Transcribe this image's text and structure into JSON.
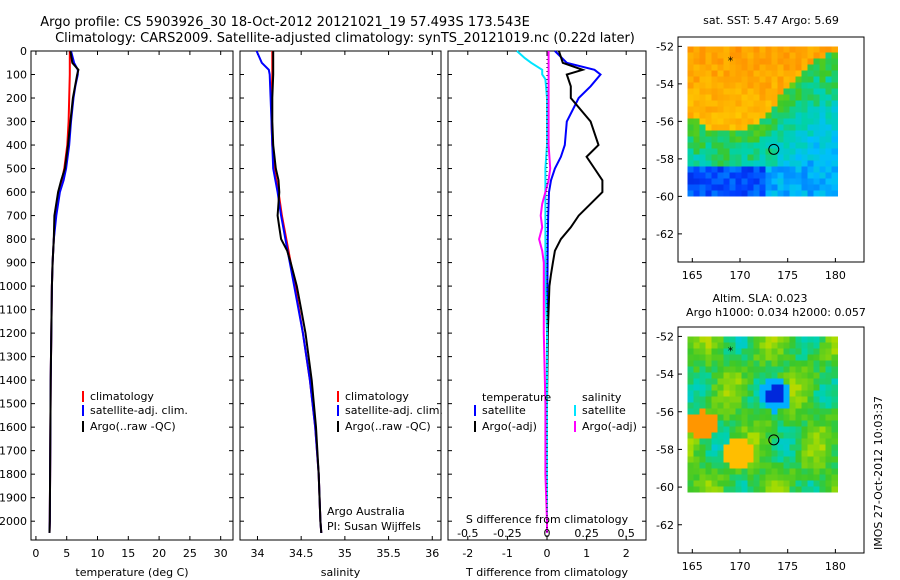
{
  "figure": {
    "title_line1": "Argo profile: CS 5903926_30 18-Oct-2012 20121021_19 57.493S 173.543E",
    "title_line2": "Climatology: CARS2009. Satellite-adjusted climatology: synTS_20121019.nc (0.22d later)",
    "side_note": "IMOS 27-Oct-2012 10:03:37",
    "owner_line1": "Argo Australia",
    "owner_line2": "PI: Susan Wijffels"
  },
  "colors": {
    "climatology": "#ff0000",
    "satellite": "#0000ff",
    "argo": "#000000",
    "sat_salinity": "#00e5ff",
    "argo_salinity": "#ff00ff"
  },
  "depth_ticks": [
    0,
    100,
    200,
    300,
    400,
    500,
    600,
    700,
    800,
    900,
    1000,
    1100,
    1200,
    1300,
    1400,
    1500,
    1600,
    1700,
    1800,
    1900,
    2000
  ],
  "chart_data": [
    {
      "id": "temperature",
      "type": "line",
      "xlabel": "temperature (deg C)",
      "xlim": [
        -0.8,
        32
      ],
      "ylim": [
        0,
        2080
      ],
      "y_reversed": true,
      "xticks": [
        0,
        5,
        10,
        15,
        20,
        25,
        30
      ],
      "xticklabels": [
        "0",
        "5",
        "10",
        "15",
        "20",
        "25",
        "30"
      ],
      "legend": [
        "climatology",
        "satellite-adj. clim.",
        "Argo(..raw -QC)"
      ],
      "series": [
        {
          "name": "climatology",
          "color": "#ff0000",
          "depth": [
            0,
            100,
            200,
            300,
            400,
            500,
            550,
            600,
            700,
            800,
            900,
            1000,
            1200,
            1400,
            1600,
            1800,
            2000,
            2050
          ],
          "values": [
            5.5,
            5.5,
            5.4,
            5.3,
            5.1,
            4.6,
            4.2,
            3.7,
            3.2,
            2.9,
            2.7,
            2.6,
            2.5,
            2.4,
            2.35,
            2.3,
            2.25,
            2.2
          ]
        },
        {
          "name": "satellite-adj. clim.",
          "color": "#0000ff",
          "depth": [
            0,
            50,
            80,
            100,
            150,
            200,
            300,
            400,
            500,
            550,
            600,
            700,
            800,
            900,
            1000,
            1200,
            1400,
            1600,
            1800,
            2000,
            2050
          ],
          "values": [
            5.7,
            6.2,
            6.8,
            6.8,
            6.4,
            6.1,
            5.7,
            5.4,
            4.9,
            4.5,
            3.9,
            3.3,
            2.9,
            2.7,
            2.6,
            2.5,
            2.4,
            2.35,
            2.3,
            2.25,
            2.2
          ]
        },
        {
          "name": "Argo(..raw -QC)",
          "color": "#000000",
          "depth": [
            0,
            50,
            80,
            100,
            200,
            300,
            400,
            500,
            550,
            600,
            700,
            800,
            900,
            1000,
            1200,
            1400,
            1600,
            1800,
            2000,
            2050
          ],
          "values": [
            5.6,
            5.9,
            6.9,
            6.7,
            6.0,
            5.6,
            5.2,
            4.7,
            4.1,
            3.6,
            3.0,
            2.9,
            2.7,
            2.6,
            2.5,
            2.4,
            2.35,
            2.3,
            2.25,
            2.2
          ]
        }
      ]
    },
    {
      "id": "salinity",
      "type": "line",
      "xlabel": "salinity",
      "xlim": [
        33.8,
        36.1
      ],
      "ylim": [
        0,
        2080
      ],
      "y_reversed": true,
      "xticks": [
        34,
        34.5,
        35,
        35.5,
        36
      ],
      "xticklabels": [
        "34",
        "34.5",
        "35",
        "35.5",
        "36"
      ],
      "legend": [
        "climatology",
        "satellite-adj. clim.",
        "Argo(..raw -QC)"
      ],
      "series": [
        {
          "name": "climatology",
          "color": "#ff0000",
          "depth": [
            0,
            100,
            200,
            300,
            400,
            500,
            600,
            700,
            800,
            900,
            1000,
            1200,
            1400,
            1600,
            1800,
            2000,
            2050
          ],
          "values": [
            34.17,
            34.17,
            34.16,
            34.16,
            34.17,
            34.19,
            34.24,
            34.28,
            34.33,
            34.38,
            34.43,
            34.52,
            34.6,
            34.66,
            34.7,
            34.72,
            34.73
          ]
        },
        {
          "name": "satellite-adj. clim.",
          "color": "#0000ff",
          "depth": [
            0,
            50,
            80,
            100,
            200,
            300,
            400,
            500,
            600,
            700,
            800,
            900,
            1000,
            1200,
            1400,
            1600,
            1800,
            2000,
            2050
          ],
          "values": [
            33.99,
            34.05,
            34.13,
            34.14,
            34.15,
            34.16,
            34.17,
            34.18,
            34.23,
            34.27,
            34.32,
            34.37,
            34.42,
            34.52,
            34.6,
            34.66,
            34.7,
            34.72,
            34.73
          ]
        },
        {
          "name": "Argo(..raw -QC)",
          "color": "#000000",
          "depth": [
            0,
            100,
            200,
            300,
            400,
            500,
            550,
            600,
            700,
            750,
            800,
            850,
            900,
            1000,
            1100,
            1200,
            1400,
            1600,
            1800,
            2000,
            2050
          ],
          "values": [
            34.18,
            34.18,
            34.17,
            34.17,
            34.18,
            34.21,
            34.24,
            34.25,
            34.23,
            34.25,
            34.27,
            34.34,
            34.38,
            34.45,
            34.5,
            34.55,
            34.62,
            34.67,
            34.7,
            34.72,
            34.73
          ]
        }
      ]
    },
    {
      "id": "difference",
      "type": "line",
      "xlabel": "T difference from climatology",
      "xlabel_top": "S difference from climatology",
      "xlim": [
        -2.5,
        2.5
      ],
      "ylim": [
        0,
        2080
      ],
      "y_reversed": true,
      "xticks": [
        -2,
        -1,
        0,
        1,
        2
      ],
      "xticklabels": [
        "-2",
        "-1",
        "0",
        "1",
        "2"
      ],
      "xticks_s": [
        -0.5,
        -0.25,
        0,
        0.25,
        0.5
      ],
      "xticklabels_s": [
        "-0.5",
        "-0.25",
        "0",
        "0.25",
        "0.5"
      ],
      "legend_left_title": "temperature",
      "legend_right_title": "salinity",
      "legend": [
        "satellite",
        "Argo(-adj)",
        "satellite",
        "Argo(-adj)"
      ],
      "series": [
        {
          "name": "satellite",
          "quantity": "temperature",
          "color": "#0000ff",
          "depth": [
            0,
            50,
            80,
            100,
            150,
            200,
            300,
            400,
            450,
            500,
            550,
            600,
            700,
            800,
            1000,
            1200,
            1500,
            1800,
            2000,
            2050
          ],
          "values": [
            0.2,
            0.5,
            1.2,
            1.35,
            1.1,
            0.8,
            0.5,
            0.45,
            0.35,
            0.2,
            0.1,
            0.05,
            0.03,
            0.02,
            0.01,
            0.0,
            0.0,
            0.0,
            0.0,
            0.0
          ]
        },
        {
          "name": "Argo(-adj)",
          "quantity": "temperature",
          "color": "#000000",
          "depth": [
            0,
            50,
            80,
            100,
            150,
            200,
            300,
            400,
            450,
            500,
            550,
            600,
            650,
            700,
            750,
            800,
            850,
            900,
            950,
            1000,
            1200,
            1500,
            1800,
            2000,
            2050
          ],
          "values": [
            0.3,
            0.4,
            0.9,
            0.5,
            0.6,
            0.6,
            1.1,
            1.3,
            1.0,
            1.2,
            1.4,
            1.4,
            1.1,
            0.8,
            0.6,
            0.35,
            0.2,
            0.15,
            0.1,
            0.06,
            0.02,
            0.0,
            0.0,
            0.0,
            0.0
          ]
        },
        {
          "name": "satellite",
          "quantity": "salinity",
          "color": "#00e5ff",
          "depth": [
            0,
            30,
            50,
            80,
            100,
            120,
            200,
            300,
            400,
            500,
            600,
            700,
            800,
            1000,
            1200,
            1500,
            1800,
            2000,
            2050
          ],
          "values": [
            -0.19,
            -0.14,
            -0.1,
            -0.03,
            -0.03,
            -0.01,
            0.0,
            0.0,
            0.0,
            -0.01,
            -0.01,
            -0.01,
            -0.01,
            -0.01,
            0.0,
            0.0,
            0.0,
            0.0,
            0.0
          ]
        },
        {
          "name": "Argo(-adj)",
          "quantity": "salinity",
          "color": "#ff00ff",
          "depth": [
            0,
            100,
            200,
            300,
            400,
            500,
            550,
            600,
            650,
            700,
            750,
            800,
            850,
            900,
            950,
            1000,
            1100,
            1200,
            1500,
            1800,
            2000,
            2050
          ],
          "values": [
            0.01,
            0.01,
            0.01,
            0.01,
            0.01,
            0.02,
            0.01,
            -0.01,
            -0.03,
            -0.04,
            -0.03,
            -0.05,
            -0.03,
            -0.02,
            -0.02,
            -0.02,
            -0.02,
            -0.02,
            -0.01,
            -0.01,
            0.0,
            0.0
          ]
        }
      ]
    },
    {
      "id": "sst_map",
      "type": "heatmap",
      "title": "sat. SST: 5.47  Argo: 5.69",
      "xlim": [
        163.5,
        183
      ],
      "ylim": [
        -63.5,
        -51.5
      ],
      "xticks": [
        165,
        170,
        175,
        180
      ],
      "yticks": [
        -52,
        -54,
        -56,
        -58,
        -60,
        -62
      ],
      "data_extent_lon": [
        164.5,
        180
      ],
      "data_extent_lat": [
        -60,
        -52
      ],
      "float_position": [
        173.543,
        -57.493
      ],
      "star_position": [
        169,
        -52.8
      ]
    },
    {
      "id": "sla_map",
      "type": "heatmap",
      "title": "Altim. SLA: 0.023",
      "subtitle": "Argo h1000: 0.034 h2000: 0.057",
      "xlim": [
        163.5,
        183
      ],
      "ylim": [
        -63.5,
        -51.5
      ],
      "xticks": [
        165,
        170,
        175,
        180
      ],
      "yticks": [
        -52,
        -54,
        -56,
        -58,
        -60,
        -62
      ],
      "data_extent_lon": [
        164.5,
        180
      ],
      "data_extent_lat": [
        -60,
        -52
      ],
      "float_position": [
        173.543,
        -57.493
      ],
      "star_position": [
        169,
        -52.8
      ]
    }
  ]
}
